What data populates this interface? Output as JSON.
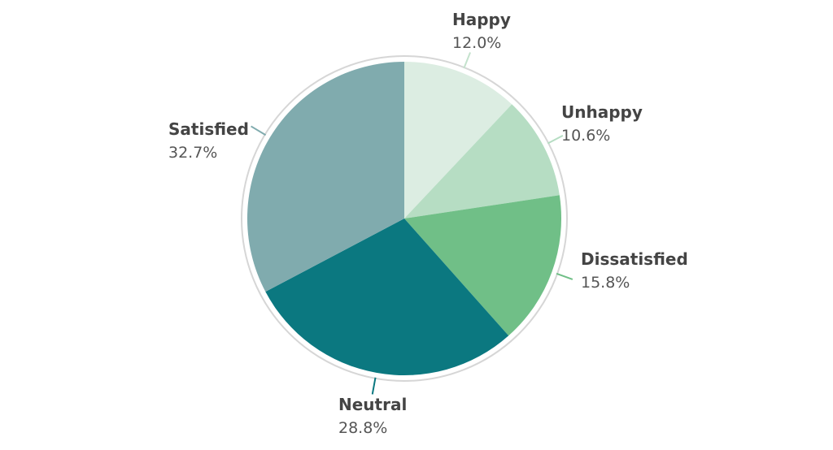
{
  "chart_data": {
    "type": "pie",
    "title": "",
    "slices": [
      {
        "label": "Happy",
        "value": 12.0,
        "value_label": "12.0%",
        "color": "#dcede2"
      },
      {
        "label": "Unhappy",
        "value": 10.6,
        "value_label": "10.6%",
        "color": "#b6ddc3"
      },
      {
        "label": "Dissatisfied",
        "value": 15.8,
        "value_label": "15.8%",
        "color": "#70bf87"
      },
      {
        "label": "Neutral",
        "value": 28.8,
        "value_label": "28.8%",
        "color": "#0b7880"
      },
      {
        "label": "Satisfied",
        "value": 32.7,
        "value_label": "32.7%",
        "color": "#80abae"
      }
    ],
    "start_angle": "12 o'clock",
    "direction": "clockwise",
    "legend": "none"
  }
}
